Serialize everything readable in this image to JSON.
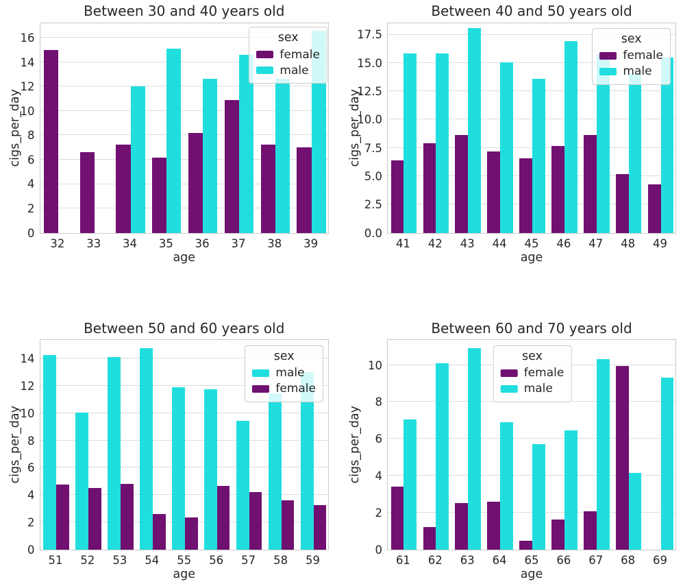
{
  "colors": {
    "female": "#701070",
    "male": "#21dede",
    "grid": "#dcdcdc",
    "spine": "#c9c9c9",
    "legend_border": "#cccccc",
    "text": "#262626",
    "background": "#ffffff"
  },
  "chart_data": [
    {
      "type": "bar",
      "title": "Between 30 and 40 years old",
      "xlabel": "age",
      "ylabel": "cigs_per_day",
      "categories": [
        "32",
        "33",
        "34",
        "35",
        "36",
        "37",
        "38",
        "39"
      ],
      "series": [
        {
          "name": "female",
          "values": [
            15.0,
            6.6,
            7.25,
            6.15,
            8.2,
            10.9,
            7.25,
            7.0
          ]
        },
        {
          "name": "male",
          "values": [
            null,
            null,
            12.0,
            15.15,
            12.65,
            14.6,
            12.65,
            16.6
          ]
        }
      ],
      "ylim": [
        0,
        17.35
      ],
      "yticks": [
        0,
        2,
        4,
        6,
        8,
        10,
        12,
        14,
        16
      ],
      "ytick_labels": [
        "0",
        "2",
        "4",
        "6",
        "8",
        "10",
        "12",
        "14",
        "16"
      ],
      "grid": true,
      "legend": {
        "title": "sex",
        "position": "upper right",
        "entries": [
          "female",
          "male"
        ]
      }
    },
    {
      "type": "bar",
      "title": "Between 40 and 50 years old",
      "xlabel": "age",
      "ylabel": "cigs_per_day",
      "categories": [
        "41",
        "42",
        "43",
        "44",
        "45",
        "46",
        "47",
        "48",
        "49"
      ],
      "series": [
        {
          "name": "female",
          "values": [
            6.4,
            7.9,
            8.65,
            7.15,
            6.6,
            7.65,
            8.65,
            5.15,
            4.25
          ]
        },
        {
          "name": "male",
          "values": [
            15.85,
            15.85,
            18.05,
            15.05,
            13.6,
            16.95,
            15.8,
            14.0,
            15.45
          ]
        }
      ],
      "ylim": [
        0,
        18.65
      ],
      "yticks": [
        0,
        2.5,
        5,
        7.5,
        10,
        12.5,
        15,
        17.5
      ],
      "ytick_labels": [
        "0.0",
        "2.5",
        "5.0",
        "7.5",
        "10.0",
        "12.5",
        "15.0",
        "17.5"
      ],
      "grid": true,
      "legend": {
        "title": "sex",
        "position": "upper right",
        "entries": [
          "female",
          "male"
        ]
      }
    },
    {
      "type": "bar",
      "title": "Between 50 and 60 years old",
      "xlabel": "age",
      "ylabel": "cigs_per_day",
      "categories": [
        "51",
        "52",
        "53",
        "54",
        "55",
        "56",
        "57",
        "58",
        "59"
      ],
      "series": [
        {
          "name": "male",
          "values": [
            14.25,
            10.05,
            14.1,
            14.75,
            11.9,
            11.75,
            9.45,
            11.45,
            13.0
          ]
        },
        {
          "name": "female",
          "values": [
            4.75,
            4.5,
            4.8,
            2.6,
            2.35,
            4.65,
            4.2,
            3.6,
            3.25
          ]
        }
      ],
      "ylim": [
        0,
        15.5
      ],
      "yticks": [
        0,
        2,
        4,
        6,
        8,
        10,
        12,
        14
      ],
      "ytick_labels": [
        "0",
        "2",
        "4",
        "6",
        "8",
        "10",
        "12",
        "14"
      ],
      "grid": true,
      "legend": {
        "title": "sex",
        "position": "upper right",
        "entries": [
          "male",
          "female"
        ]
      }
    },
    {
      "type": "bar",
      "title": "Between 60 and 70 years old",
      "xlabel": "age",
      "ylabel": "cigs_per_day",
      "categories": [
        "61",
        "62",
        "63",
        "64",
        "65",
        "66",
        "67",
        "68",
        "69"
      ],
      "series": [
        {
          "name": "female",
          "values": [
            3.4,
            1.2,
            2.5,
            2.6,
            0.45,
            1.6,
            2.05,
            9.95,
            null
          ]
        },
        {
          "name": "male",
          "values": [
            7.05,
            10.1,
            10.9,
            6.9,
            5.7,
            6.45,
            10.3,
            4.15,
            9.3
          ]
        }
      ],
      "ylim": [
        0,
        11.45
      ],
      "yticks": [
        0,
        2,
        4,
        6,
        8,
        10
      ],
      "ytick_labels": [
        "0",
        "2",
        "4",
        "6",
        "8",
        "10"
      ],
      "grid": true,
      "legend": {
        "title": "sex",
        "position": "upper center",
        "entries": [
          "female",
          "male"
        ]
      }
    }
  ]
}
